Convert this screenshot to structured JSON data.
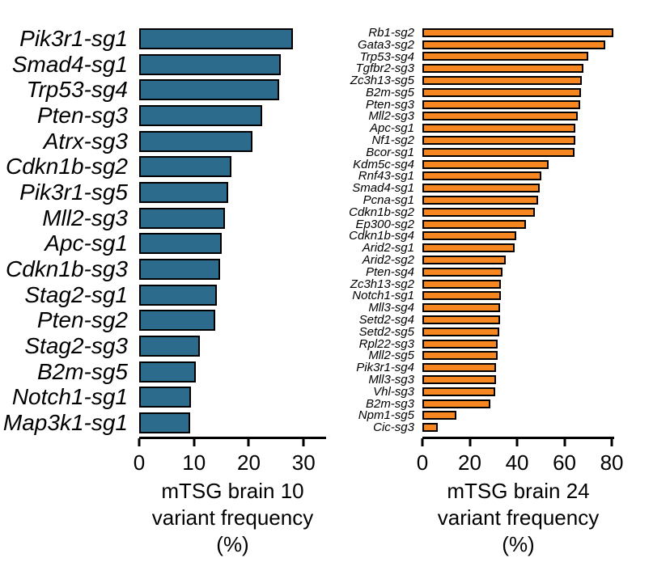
{
  "chart_data": [
    {
      "type": "bar",
      "orientation": "horizontal",
      "title_line1": "mTSG brain 10",
      "title_line2": "variant frequency (%)",
      "xlabel": "mTSG brain 10 variant frequency (%)",
      "bar_color": "#2d6b8d",
      "bar_border_color": "#000000",
      "xticks": [
        0,
        10,
        20,
        30
      ],
      "xlim": [
        0,
        34.1
      ],
      "grid": false,
      "categories": [
        "Pik3r1-sg1",
        "Smad4-sg1",
        "Trp53-sg4",
        "Pten-sg3",
        "Atrx-sg3",
        "Cdkn1b-sg2",
        "Pik3r1-sg5",
        "Mll2-sg3",
        "Apc-sg1",
        "Cdkn1b-sg3",
        "Stag2-sg1",
        "Pten-sg2",
        "Stag2-sg3",
        "B2m-sg5",
        "Notch1-sg1",
        "Map3k1-sg1"
      ],
      "values": [
        28.0,
        25.9,
        25.6,
        22.5,
        20.6,
        16.9,
        16.2,
        15.7,
        15.1,
        14.8,
        14.2,
        13.9,
        11.1,
        10.4,
        9.5,
        9.3
      ]
    },
    {
      "type": "bar",
      "orientation": "horizontal",
      "title_line1": "mTSG brain 24",
      "title_line2": "variant frequency (%)",
      "xlabel": "mTSG brain 24 variant frequency (%)",
      "bar_color": "#f6861f",
      "bar_border_color": "#000000",
      "xticks": [
        0,
        20,
        40,
        60,
        80
      ],
      "xlim": [
        0,
        81
      ],
      "grid": false,
      "categories": [
        "Rb1-sg2",
        "Gata3-sg2",
        "Trp53-sg4",
        "Tgfbr2-sg3",
        "Zc3h13-sg5",
        "B2m-sg5",
        "Pten-sg3",
        "Mll2-sg3",
        "Apc-sg1",
        "Nf1-sg2",
        "Bcor-sg1",
        "Kdm5c-sg4",
        "Rnf43-sg1",
        "Smad4-sg1",
        "Pcna-sg1",
        "Cdkn1b-sg2",
        "Ep300-sg2",
        "Cdkn1b-sg4",
        "Arid2-sg1",
        "Arid2-sg2",
        "Pten-sg4",
        "Zc3h13-sg2",
        "Notch1-sg1",
        "Mll3-sg4",
        "Setd2-sg4",
        "Setd2-sg5",
        "Rpl22-sg3",
        "Mll2-sg5",
        "Pik3r1-sg4",
        "Mll3-sg3",
        "Vhl-sg3",
        "B2m-sg3",
        "Npm1-sg5",
        "Cic-sg3"
      ],
      "values": [
        80.7,
        77.3,
        70.1,
        68.0,
        67.4,
        67.0,
        66.6,
        65.5,
        64.6,
        64.5,
        64.4,
        53.4,
        50.1,
        49.6,
        48.9,
        47.5,
        43.8,
        39.7,
        39.0,
        35.2,
        33.9,
        33.2,
        33.0,
        32.9,
        32.7,
        32.3,
        31.8,
        31.7,
        31.2,
        31.0,
        30.8,
        28.8,
        14.3,
        6.6
      ]
    }
  ]
}
